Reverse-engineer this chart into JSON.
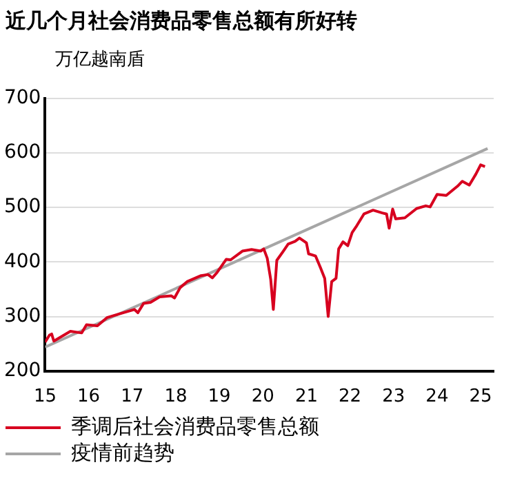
{
  "chart_data": {
    "type": "line",
    "title": "近几个月社会消费品零售总额有所好转",
    "ylabel": "万亿越南盾",
    "xlim": [
      15,
      25.3
    ],
    "xticks": [
      15,
      16,
      17,
      18,
      19,
      20,
      21,
      22,
      23,
      24,
      25
    ],
    "ylim": [
      200,
      700
    ],
    "yticks": [
      200,
      300,
      400,
      500,
      600,
      700
    ],
    "grid": "y",
    "legend": "bottom",
    "marker": "none",
    "line_style": "solid",
    "series": [
      {
        "name": "季调后社会消费品零售总额",
        "color": "#d7001f",
        "x": [
          15.0,
          15.1,
          15.15,
          15.2,
          15.58,
          15.84,
          15.95,
          16.2,
          16.42,
          16.79,
          17.05,
          17.13,
          17.26,
          17.42,
          17.63,
          17.9,
          17.97,
          18.1,
          18.26,
          18.58,
          18.74,
          18.84,
          18.95,
          19.16,
          19.26,
          19.53,
          19.74,
          19.95,
          20.02,
          20.1,
          20.18,
          20.24,
          20.32,
          20.47,
          20.58,
          20.74,
          20.84,
          20.95,
          21.0,
          21.05,
          21.21,
          21.32,
          21.42,
          21.5,
          21.58,
          21.68,
          21.74,
          21.84,
          21.95,
          22.05,
          22.16,
          22.32,
          22.53,
          22.74,
          22.84,
          22.9,
          22.98,
          23.05,
          23.26,
          23.53,
          23.74,
          23.84,
          24.0,
          24.21,
          24.47,
          24.58,
          24.74,
          24.89,
          25.0,
          25.1
        ],
        "values": [
          253,
          266,
          268,
          255,
          273,
          270,
          285,
          283,
          298,
          307,
          313,
          307,
          324,
          326,
          336,
          338,
          334,
          353,
          364,
          375,
          377,
          371,
          381,
          405,
          404,
          420,
          423,
          420,
          424,
          407,
          368,
          313,
          403,
          420,
          433,
          438,
          444,
          438,
          435,
          415,
          411,
          390,
          370,
          300,
          364,
          370,
          424,
          437,
          430,
          454,
          467,
          488,
          495,
          490,
          488,
          462,
          497,
          479,
          481,
          498,
          503,
          501,
          524,
          522,
          539,
          548,
          541,
          561,
          578,
          575
        ]
      },
      {
        "name": "疫情前趋势",
        "color": "#a6a6a6",
        "x": [
          15.0,
          25.16
        ],
        "values": [
          244,
          608
        ]
      }
    ]
  }
}
